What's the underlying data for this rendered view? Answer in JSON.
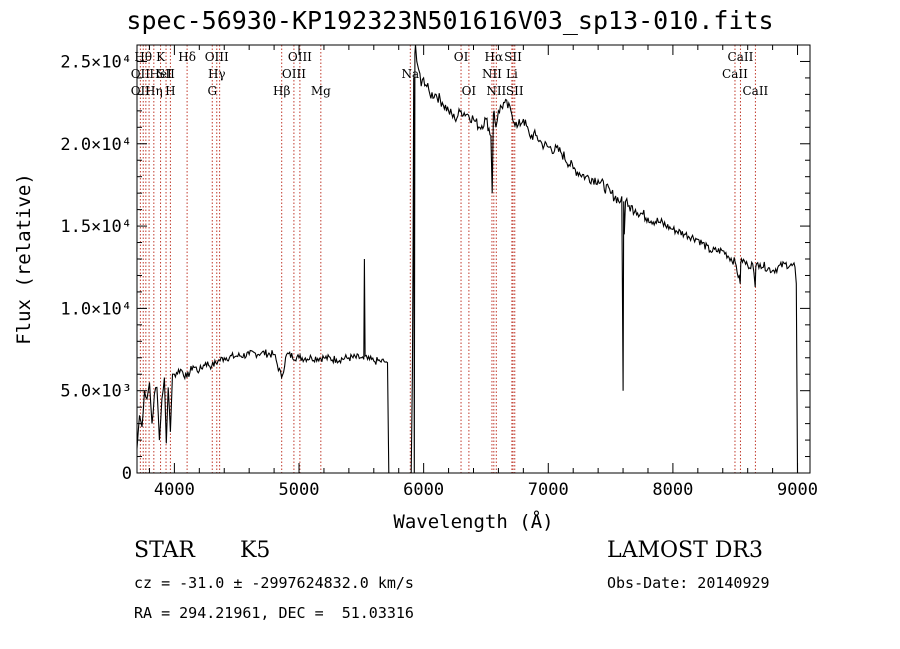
{
  "chart_data": {
    "type": "line",
    "title": "spec-56930-KP192323N501616V03_sp13-010.fits",
    "xlabel": "Wavelength (Å)",
    "ylabel": "Flux (relative)",
    "xlim": [
      3700,
      9100
    ],
    "ylim": [
      0,
      26000
    ],
    "x_ticks": [
      {
        "value": 4000,
        "label": "4000"
      },
      {
        "value": 5000,
        "label": "5000"
      },
      {
        "value": 6000,
        "label": "6000"
      },
      {
        "value": 7000,
        "label": "7000"
      },
      {
        "value": 8000,
        "label": "8000"
      },
      {
        "value": 9000,
        "label": "9000"
      }
    ],
    "y_ticks": [
      {
        "value": 0,
        "label": "0"
      },
      {
        "value": 5000,
        "label": "5.0×10³"
      },
      {
        "value": 10000,
        "label": "1.0×10⁴"
      },
      {
        "value": 15000,
        "label": "1.5×10⁴"
      },
      {
        "value": 20000,
        "label": "2.0×10⁴"
      },
      {
        "value": 25000,
        "label": "2.5×10⁴"
      }
    ],
    "spectrum": {
      "x": [
        3700,
        3720,
        3740,
        3760,
        3780,
        3800,
        3820,
        3840,
        3860,
        3880,
        3900,
        3920,
        3935,
        3950,
        3968,
        3985,
        4000,
        4050,
        4100,
        4150,
        4200,
        4250,
        4300,
        4350,
        4400,
        4500,
        4600,
        4700,
        4800,
        4860,
        4900,
        5000,
        5100,
        5200,
        5300,
        5400,
        5500,
        5520,
        5525,
        5530,
        5550,
        5600,
        5650,
        5700,
        5710,
        5720,
        5740,
        5880,
        5900,
        5910,
        5915,
        5920,
        5925,
        5930,
        5935,
        5945,
        5960,
        5980,
        6000,
        6050,
        6100,
        6150,
        6200,
        6250,
        6300,
        6350,
        6400,
        6450,
        6500,
        6540,
        6550,
        6560,
        6565,
        6570,
        6580,
        6600,
        6650,
        6700,
        6750,
        6800,
        6850,
        6900,
        6950,
        7000,
        7100,
        7200,
        7300,
        7400,
        7500,
        7580,
        7590,
        7600,
        7605,
        7610,
        7620,
        7640,
        7700,
        7800,
        7900,
        8000,
        8100,
        8200,
        8300,
        8400,
        8500,
        8540,
        8545,
        8550,
        8600,
        8640,
        8660,
        8665,
        8670,
        8700,
        8800,
        8900,
        8980,
        8990,
        9000
      ],
      "y": [
        1500,
        3500,
        2800,
        5000,
        4500,
        5500,
        3000,
        4800,
        5200,
        2000,
        4500,
        5800,
        1800,
        5200,
        2500,
        6000,
        6000,
        6300,
        5800,
        6500,
        6200,
        6700,
        6500,
        6800,
        7000,
        7100,
        7200,
        7300,
        7200,
        5800,
        7200,
        7000,
        7000,
        7000,
        6900,
        7000,
        7000,
        6900,
        13000,
        7100,
        6900,
        6800,
        6800,
        6750,
        6700,
        0,
        0,
        0,
        0,
        6000,
        14000,
        24000,
        0,
        25500,
        26000,
        25000,
        24500,
        23500,
        24000,
        23000,
        23000,
        22500,
        22000,
        21500,
        22000,
        21800,
        21500,
        21000,
        21500,
        20500,
        17000,
        21800,
        22000,
        21500,
        21000,
        22000,
        22500,
        22000,
        21000,
        21500,
        20500,
        20500,
        20000,
        19800,
        19500,
        18500,
        18000,
        17800,
        17000,
        16500,
        16800,
        5000,
        16500,
        14500,
        16500,
        16200,
        16000,
        15500,
        15200,
        14800,
        14500,
        14200,
        13500,
        13500,
        12800,
        11500,
        12800,
        13000,
        12600,
        12700,
        11300,
        12500,
        12700,
        12700,
        12300,
        12700,
        12500,
        11500,
        0
      ]
    },
    "line_markers": [
      {
        "wavelength": 3750,
        "label": "Hθ",
        "row": 1
      },
      {
        "wavelength": 3727,
        "label": "OII",
        "row": 2
      },
      {
        "wavelength": 3727,
        "label": "OII",
        "row": 3
      },
      {
        "wavelength": 3835,
        "label": "Hη",
        "row": 3
      },
      {
        "wavelength": 3889,
        "label": "K",
        "row": 1
      },
      {
        "wavelength": 3889,
        "label": "HeI",
        "row": 2
      },
      {
        "wavelength": 3933,
        "label": "SII",
        "row": 2
      },
      {
        "wavelength": 3968,
        "label": "H",
        "row": 3
      },
      {
        "wavelength": 4102,
        "label": "Hδ",
        "row": 1
      },
      {
        "wavelength": 4340,
        "label": "OIII",
        "row": 1
      },
      {
        "wavelength": 4340,
        "label": "Hγ",
        "row": 2
      },
      {
        "wavelength": 4304,
        "label": "G",
        "row": 3
      },
      {
        "wavelength": 5007,
        "label": "OIII",
        "row": 1
      },
      {
        "wavelength": 4959,
        "label": "OIII",
        "row": 2
      },
      {
        "wavelength": 4861,
        "label": "Hβ",
        "row": 3
      },
      {
        "wavelength": 5175,
        "label": "Mg",
        "row": 3
      },
      {
        "wavelength": 5893,
        "label": "Na",
        "row": 2
      },
      {
        "wavelength": 6300,
        "label": "OI",
        "row": 1
      },
      {
        "wavelength": 6363,
        "label": "OI",
        "row": 3
      },
      {
        "wavelength": 6563,
        "label": "Hα",
        "row": 1
      },
      {
        "wavelength": 6717,
        "label": "SII",
        "row": 1
      },
      {
        "wavelength": 6548,
        "label": "NII",
        "row": 2
      },
      {
        "wavelength": 6708,
        "label": "Li",
        "row": 2
      },
      {
        "wavelength": 6583,
        "label": "NII",
        "row": 3
      },
      {
        "wavelength": 6731,
        "label": "SII",
        "row": 3
      },
      {
        "wavelength": 8542,
        "label": "CaII",
        "row": 1
      },
      {
        "wavelength": 8498,
        "label": "CaII",
        "row": 2
      },
      {
        "wavelength": 8662,
        "label": "CaII",
        "row": 3
      }
    ],
    "marker_lines": [
      3727,
      3750,
      3771,
      3797,
      3835,
      3889,
      3933,
      3968,
      4102,
      4304,
      4340,
      4363,
      4861,
      4959,
      5007,
      5175,
      5893,
      6300,
      6363,
      6548,
      6563,
      6583,
      6708,
      6717,
      6731,
      8498,
      8542,
      8662
    ]
  },
  "info": {
    "object_class": "STAR",
    "subclass": "K5",
    "survey": "LAMOST DR3",
    "redshift": "cz = -31.0 ± -2997624832.0 km/s",
    "obs_date": "Obs-Date: 20140929",
    "coordinates": "RA = 294.21961, DEC =  51.03316"
  }
}
